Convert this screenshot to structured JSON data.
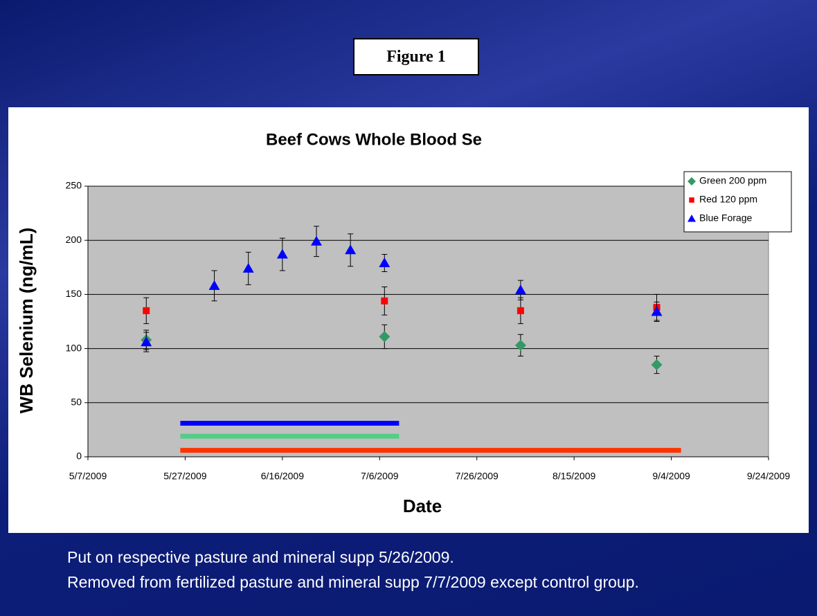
{
  "figure_label": "Figure 1",
  "notes": [
    "Put on respective pasture and mineral supp 5/26/2009.",
    "Removed from fertilized pasture and mineral supp 7/7/2009 except control group."
  ],
  "chart_data": {
    "type": "scatter",
    "title": "Beef Cows Whole Blood Se",
    "x_label": "Date",
    "y_label": "WB Selenium (ng/mL)",
    "xlim": [
      "5/7/2009",
      "9/24/2009"
    ],
    "xticks": [
      "5/7/2009",
      "5/27/2009",
      "6/16/2009",
      "7/6/2009",
      "7/26/2009",
      "8/15/2009",
      "9/4/2009",
      "9/24/2009"
    ],
    "ylim": [
      0,
      250
    ],
    "yticks": [
      0,
      50,
      100,
      150,
      200,
      250
    ],
    "grid": true,
    "legend": "upper right",
    "series": [
      {
        "name": "Green 200 ppm",
        "color": "#339966",
        "marker": "diamond",
        "x": [
          "5/19/2009",
          "7/7/2009",
          "8/4/2009",
          "9/1/2009"
        ],
        "values": [
          108,
          111,
          103,
          85
        ],
        "errors": [
          9,
          11,
          10,
          8
        ]
      },
      {
        "name": "Red 120 ppm",
        "color": "#ff0000",
        "marker": "square",
        "x": [
          "5/19/2009",
          "7/7/2009",
          "8/4/2009",
          "9/1/2009"
        ],
        "values": [
          135,
          144,
          135,
          138
        ],
        "errors": [
          12,
          13,
          12,
          12
        ]
      },
      {
        "name": "Blue Forage",
        "color": "#0000ff",
        "marker": "triangle",
        "x": [
          "5/19/2009",
          "6/2/2009",
          "6/9/2009",
          "6/16/2009",
          "6/23/2009",
          "6/30/2009",
          "7/7/2009",
          "8/4/2009",
          "9/1/2009"
        ],
        "values": [
          106,
          158,
          174,
          187,
          199,
          191,
          179,
          154,
          134
        ],
        "errors": [
          9,
          14,
          15,
          15,
          14,
          15,
          8,
          9,
          9
        ]
      }
    ],
    "periods": [
      {
        "color": "#0000ff",
        "start": "5/26/2009",
        "end": "7/10/2009",
        "value": 31
      },
      {
        "color": "#55cc88",
        "start": "5/26/2009",
        "end": "7/10/2009",
        "value": 19
      },
      {
        "color": "#ff3300",
        "start": "5/26/2009",
        "end": "9/6/2009",
        "value": 6
      }
    ]
  }
}
